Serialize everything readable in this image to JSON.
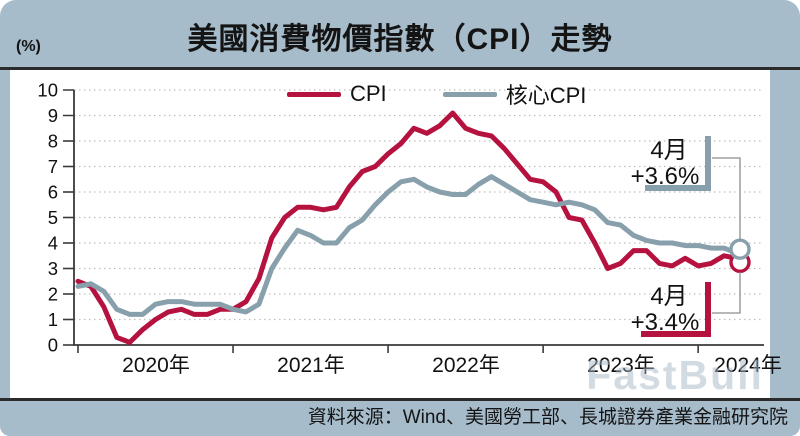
{
  "header": {
    "title": "美國消費物價指數（CPI）走勢",
    "y_axis_unit": "(%)"
  },
  "legend": [
    {
      "label": "CPI",
      "color": "#b5123f"
    },
    {
      "label": "核心CPI",
      "color": "#87a0ac"
    }
  ],
  "annotations": {
    "core": {
      "line1": "4月",
      "line2": "+3.6%"
    },
    "cpi": {
      "line1": "4月",
      "line2": "+3.4%"
    }
  },
  "footer": {
    "source": "資料來源：Wind、美國勞工部、長城證券產業金融研究院"
  },
  "watermark": "FastBull",
  "colors": {
    "background": "#a7bccb",
    "panel": "#ffffff",
    "cpi_line": "#b5123f",
    "core_cpi_line": "#87a0ac",
    "axis": "#3a3a3a",
    "gridline": "#bfbfbf",
    "rule": "#2b2b2b"
  },
  "chart_data": {
    "type": "line",
    "title": "美國消費物價指數（CPI）走勢",
    "ylabel": "(%)",
    "ylim": [
      0,
      10
    ],
    "y_ticks": [
      0,
      1,
      2,
      3,
      4,
      5,
      6,
      7,
      8,
      9,
      10
    ],
    "x_tick_labels": [
      "2020年",
      "2021年",
      "2022年",
      "2023年",
      "2024年"
    ],
    "grid": "dotted-horizontal",
    "legend_position": "top-center",
    "x_months": [
      "2020-01",
      "2020-02",
      "2020-03",
      "2020-04",
      "2020-05",
      "2020-06",
      "2020-07",
      "2020-08",
      "2020-09",
      "2020-10",
      "2020-11",
      "2020-12",
      "2021-01",
      "2021-02",
      "2021-03",
      "2021-04",
      "2021-05",
      "2021-06",
      "2021-07",
      "2021-08",
      "2021-09",
      "2021-10",
      "2021-11",
      "2021-12",
      "2022-01",
      "2022-02",
      "2022-03",
      "2022-04",
      "2022-05",
      "2022-06",
      "2022-07",
      "2022-08",
      "2022-09",
      "2022-10",
      "2022-11",
      "2022-12",
      "2023-01",
      "2023-02",
      "2023-03",
      "2023-04",
      "2023-05",
      "2023-06",
      "2023-07",
      "2023-08",
      "2023-09",
      "2023-10",
      "2023-11",
      "2023-12",
      "2024-01",
      "2024-02",
      "2024-03",
      "2024-04"
    ],
    "series": [
      {
        "name": "CPI",
        "color": "#b5123f",
        "end_label": "4月 +3.4%",
        "values": [
          2.5,
          2.3,
          1.5,
          0.3,
          0.1,
          0.6,
          1.0,
          1.3,
          1.4,
          1.2,
          1.2,
          1.4,
          1.4,
          1.7,
          2.6,
          4.2,
          5.0,
          5.4,
          5.4,
          5.3,
          5.4,
          6.2,
          6.8,
          7.0,
          7.5,
          7.9,
          8.5,
          8.3,
          8.6,
          9.1,
          8.5,
          8.3,
          8.2,
          7.7,
          7.1,
          6.5,
          6.4,
          6.0,
          5.0,
          4.9,
          4.0,
          3.0,
          3.2,
          3.7,
          3.7,
          3.2,
          3.1,
          3.4,
          3.1,
          3.2,
          3.5,
          3.4
        ]
      },
      {
        "name": "核心CPI",
        "color": "#87a0ac",
        "end_label": "4月 +3.6%",
        "values": [
          2.3,
          2.4,
          2.1,
          1.4,
          1.2,
          1.2,
          1.6,
          1.7,
          1.7,
          1.6,
          1.6,
          1.6,
          1.4,
          1.3,
          1.6,
          3.0,
          3.8,
          4.5,
          4.3,
          4.0,
          4.0,
          4.6,
          4.9,
          5.5,
          6.0,
          6.4,
          6.5,
          6.2,
          6.0,
          5.9,
          5.9,
          6.3,
          6.6,
          6.3,
          6.0,
          5.7,
          5.6,
          5.5,
          5.6,
          5.5,
          5.3,
          4.8,
          4.7,
          4.3,
          4.1,
          4.0,
          4.0,
          3.9,
          3.9,
          3.8,
          3.8,
          3.6
        ]
      }
    ]
  }
}
